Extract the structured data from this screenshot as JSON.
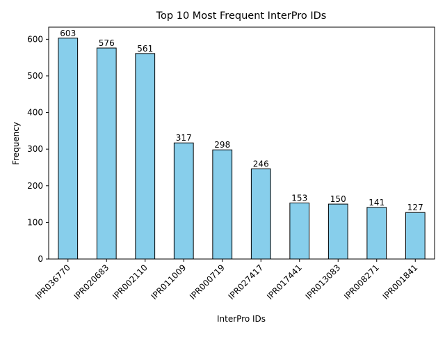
{
  "chart_data": {
    "type": "bar",
    "title": "Top 10 Most Frequent InterPro IDs",
    "xlabel": "InterPro IDs",
    "ylabel": "Frequency",
    "categories": [
      "IPR036770",
      "IPR020683",
      "IPR002110",
      "IPR011009",
      "IPR000719",
      "IPR027417",
      "IPR017441",
      "IPR013083",
      "IPR008271",
      "IPR001841"
    ],
    "values": [
      603,
      576,
      561,
      317,
      298,
      246,
      153,
      150,
      141,
      127
    ],
    "ylim": [
      0,
      633
    ],
    "yticks": [
      0,
      100,
      200,
      300,
      400,
      500,
      600
    ],
    "grid": false,
    "legend": "none",
    "bar_color": "#87ceeb",
    "edge_color": "#000000"
  }
}
